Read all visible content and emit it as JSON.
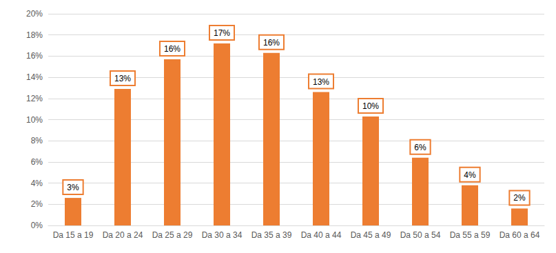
{
  "chart_data": {
    "type": "bar",
    "categories": [
      "Da 15 a 19",
      "Da 20 a 24",
      "Da 25 a 29",
      "Da 30 a 34",
      "Da 35 a 39",
      "Da 40 a 44",
      "Da 45 a 49",
      "Da 50 a 54",
      "Da 55 a 59",
      "Da 60 a 64"
    ],
    "values": [
      2.6,
      12.9,
      15.7,
      17.2,
      16.3,
      12.6,
      10.3,
      6.4,
      3.8,
      1.6
    ],
    "value_labels": [
      "3%",
      "13%",
      "16%",
      "17%",
      "16%",
      "13%",
      "10%",
      "6%",
      "4%",
      "2%"
    ],
    "color": "#ed7d31",
    "ylim": [
      0,
      20
    ],
    "yticks": [
      {
        "value": 0,
        "label": "0%"
      },
      {
        "value": 2,
        "label": "2%"
      },
      {
        "value": 4,
        "label": "4%"
      },
      {
        "value": 6,
        "label": "6%"
      },
      {
        "value": 8,
        "label": "8%"
      },
      {
        "value": 10,
        "label": "10%"
      },
      {
        "value": 12,
        "label": "12%"
      },
      {
        "value": 14,
        "label": "14%"
      },
      {
        "value": 16,
        "label": "16%"
      },
      {
        "value": 18,
        "label": "18%"
      },
      {
        "value": 20,
        "label": "20%"
      }
    ],
    "grid": true,
    "data_labels": true
  }
}
